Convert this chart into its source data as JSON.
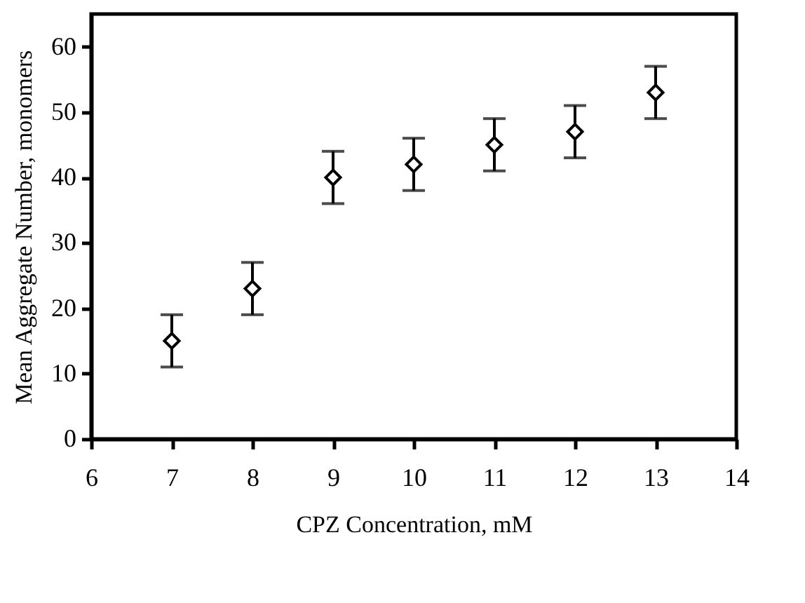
{
  "chart_data": {
    "type": "scatter",
    "xlabel": "CPZ Concentration, mM",
    "ylabel": "Mean Aggregate Number, monomers",
    "x": [
      7,
      8,
      9,
      10,
      11,
      12,
      13
    ],
    "values": [
      15,
      23,
      40,
      42,
      45,
      47,
      53
    ],
    "errors": [
      4,
      4,
      4,
      4,
      4,
      4,
      4
    ],
    "color": "#000000",
    "xlim": [
      6,
      14
    ],
    "xticks": [
      6,
      7,
      8,
      9,
      10,
      11,
      12,
      13,
      14
    ],
    "ylim": [
      0,
      65
    ],
    "yticks": [
      0,
      10,
      20,
      30,
      40,
      50,
      60
    ],
    "marker": "diamond",
    "grid": false
  }
}
